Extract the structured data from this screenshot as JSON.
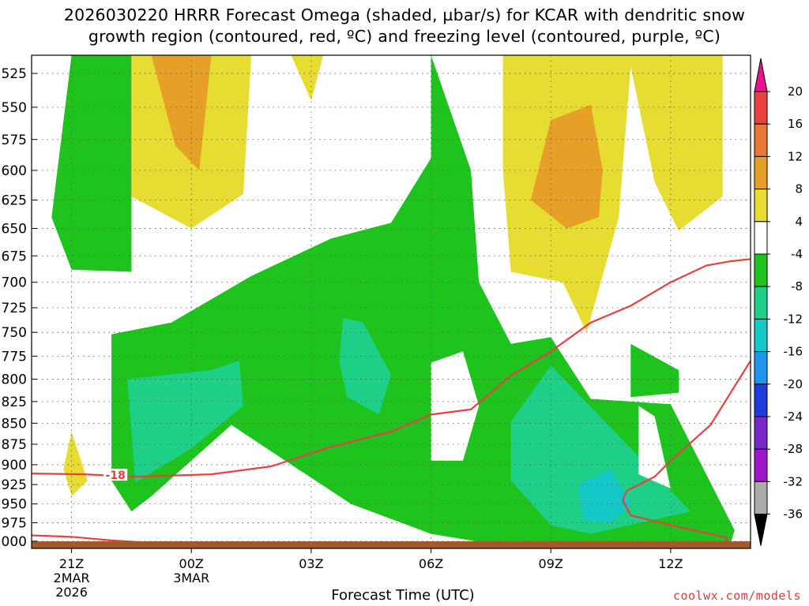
{
  "title_line1": "2026030220 HRRR Forecast Omega (shaded, µbar/s) for KCAR with dendritic snow",
  "title_line2": "growth region (contoured, red, ºC) and freezing level (contoured, purple, ºC)",
  "x_axis_title": "Forecast Time (UTC)",
  "credit": "coolwx.com/models",
  "contour_label": "-18",
  "colors": {
    "green": "#1ec31e",
    "teal": "#1ecf88",
    "cyan": "#14c8c8",
    "yellow": "#e6dc32",
    "orange": "#e6a028",
    "red_contour": "#e84040",
    "ground": "#a05a2c"
  },
  "chart_data": {
    "type": "heatmap",
    "title": "2026030220 HRRR Forecast Omega (shaded, µbar/s) for KCAR with dendritic snow growth region (contoured, red, ºC) and freezing level (contoured, purple, ºC)",
    "xlabel": "Forecast Time (UTC)",
    "ylabel": "",
    "x_ticks": [
      {
        "label": "21Z",
        "sub": [
          "2MAR",
          "2026"
        ],
        "hour": 1
      },
      {
        "label": "00Z",
        "sub": [
          "3MAR"
        ],
        "hour": 4
      },
      {
        "label": "03Z",
        "sub": [],
        "hour": 7
      },
      {
        "label": "06Z",
        "sub": [],
        "hour": 10
      },
      {
        "label": "09Z",
        "sub": [],
        "hour": 13
      },
      {
        "label": "12Z",
        "sub": [],
        "hour": 16
      }
    ],
    "xlim_hours": [
      0,
      18
    ],
    "y_ticks": [
      525,
      550,
      575,
      600,
      625,
      650,
      675,
      700,
      725,
      750,
      775,
      800,
      825,
      850,
      875,
      900,
      925,
      950,
      975,
      1000
    ],
    "ylim_mb": [
      1010,
      512
    ],
    "y_scale": "log-pressure",
    "colorbar": {
      "labels": [
        "20",
        "16",
        "12",
        "8",
        "4",
        "-4",
        "-8",
        "-12",
        "-16",
        "-20",
        "-24",
        "-28",
        "-32",
        "-36"
      ],
      "bins": [
        {
          "from": 16,
          "to": 20,
          "color": "#e84040"
        },
        {
          "from": 12,
          "to": 16,
          "color": "#e87830"
        },
        {
          "from": 8,
          "to": 12,
          "color": "#e6a028"
        },
        {
          "from": 4,
          "to": 8,
          "color": "#e6dc32"
        },
        {
          "from": -4,
          "to": 4,
          "color": "#ffffff"
        },
        {
          "from": -8,
          "to": -4,
          "color": "#1ec31e"
        },
        {
          "from": -12,
          "to": -8,
          "color": "#1ecf88"
        },
        {
          "from": -16,
          "to": -12,
          "color": "#14c8c8"
        },
        {
          "from": -20,
          "to": -16,
          "color": "#1e96f0"
        },
        {
          "from": -24,
          "to": -20,
          "color": "#1e3cdc"
        },
        {
          "from": -28,
          "to": -24,
          "color": "#7828c8"
        },
        {
          "from": -32,
          "to": -28,
          "color": "#a014c8"
        },
        {
          "from": -36,
          "to": -32,
          "color": "#aaaaaa"
        }
      ],
      "over_color": "#e6148c",
      "under_color": "#000000"
    },
    "shaded_regions": [
      {
        "name": "green-west",
        "color": "green",
        "points": [
          [
            1,
            512
          ],
          [
            2.5,
            512
          ],
          [
            2.5,
            690
          ],
          [
            1.0,
            688
          ],
          [
            0.5,
            640
          ]
        ]
      },
      {
        "name": "green-main",
        "color": "green",
        "points": [
          [
            2.0,
            752
          ],
          [
            3.5,
            740
          ],
          [
            5.5,
            694
          ],
          [
            7.5,
            659
          ],
          [
            9.0,
            645
          ],
          [
            10.0,
            590
          ],
          [
            10.0,
            512
          ],
          [
            11.0,
            600
          ],
          [
            11.2,
            700
          ],
          [
            12.0,
            762
          ],
          [
            13.0,
            755
          ],
          [
            14.0,
            822
          ],
          [
            16.0,
            828
          ],
          [
            17.6,
            985
          ],
          [
            17.5,
            1003
          ],
          [
            15.0,
            1005
          ],
          [
            12.0,
            1008
          ],
          [
            10.0,
            990
          ],
          [
            8.0,
            950
          ],
          [
            6.5,
            900
          ],
          [
            5.0,
            852
          ],
          [
            3.0,
            940
          ],
          [
            2.5,
            960
          ],
          [
            2.0,
            920
          ]
        ]
      },
      {
        "name": "green-east",
        "color": "green",
        "points": [
          [
            15.0,
            762
          ],
          [
            16.2,
            790
          ],
          [
            16.2,
            815
          ],
          [
            15.0,
            820
          ]
        ]
      },
      {
        "name": "teal-west",
        "color": "teal",
        "points": [
          [
            2.4,
            800
          ],
          [
            4.5,
            790
          ],
          [
            5.2,
            780
          ],
          [
            5.3,
            830
          ],
          [
            4.0,
            880
          ],
          [
            2.6,
            922
          ],
          [
            2.5,
            860
          ]
        ]
      },
      {
        "name": "teal-mid",
        "color": "teal",
        "points": [
          [
            7.8,
            735
          ],
          [
            8.3,
            740
          ],
          [
            9.0,
            795
          ],
          [
            8.7,
            840
          ],
          [
            7.9,
            820
          ],
          [
            7.7,
            780
          ]
        ]
      },
      {
        "name": "teal-east",
        "color": "teal",
        "points": [
          [
            12.0,
            848
          ],
          [
            13.0,
            785
          ],
          [
            15.0,
            880
          ],
          [
            16.5,
            960
          ],
          [
            14.0,
            990
          ],
          [
            13.0,
            978
          ],
          [
            12.0,
            920
          ]
        ]
      },
      {
        "name": "cyan-east",
        "color": "cyan",
        "points": [
          [
            13.7,
            925
          ],
          [
            14.5,
            905
          ],
          [
            15.0,
            950
          ],
          [
            14.5,
            975
          ],
          [
            13.8,
            970
          ]
        ]
      },
      {
        "name": "yellow-north",
        "color": "yellow",
        "points": [
          [
            2.5,
            512
          ],
          [
            5.5,
            512
          ],
          [
            5.3,
            620
          ],
          [
            4.0,
            650
          ],
          [
            2.5,
            622
          ]
        ]
      },
      {
        "name": "orange-north",
        "color": "orange",
        "points": [
          [
            3.0,
            512
          ],
          [
            4.5,
            512
          ],
          [
            4.2,
            600
          ],
          [
            3.6,
            580
          ]
        ]
      },
      {
        "name": "yellow-east",
        "color": "yellow",
        "points": [
          [
            11.8,
            512
          ],
          [
            17.3,
            512
          ],
          [
            17.3,
            622
          ],
          [
            16.2,
            652
          ],
          [
            15.6,
            610
          ],
          [
            15.0,
            520
          ],
          [
            14.7,
            640
          ],
          [
            13.9,
            750
          ],
          [
            13.3,
            700
          ],
          [
            12.0,
            690
          ],
          [
            11.8,
            600
          ]
        ]
      },
      {
        "name": "orange-east",
        "color": "orange",
        "points": [
          [
            12.5,
            625
          ],
          [
            13.0,
            560
          ],
          [
            14.0,
            548
          ],
          [
            14.3,
            600
          ],
          [
            14.2,
            640
          ],
          [
            13.4,
            650
          ]
        ]
      },
      {
        "name": "yellow-small",
        "color": "yellow",
        "points": [
          [
            0.8,
            905
          ],
          [
            1.0,
            860
          ],
          [
            1.4,
            920
          ],
          [
            1.0,
            940
          ]
        ]
      },
      {
        "name": "yellow-top-mid",
        "color": "yellow",
        "points": [
          [
            6.5,
            512
          ],
          [
            7.3,
            512
          ],
          [
            7.0,
            545
          ]
        ]
      }
    ],
    "white_holes": [
      {
        "name": "hole-0545",
        "points": [
          [
            10.0,
            782
          ],
          [
            10.8,
            770
          ],
          [
            11.2,
            830
          ],
          [
            10.8,
            895
          ],
          [
            10.0,
            895
          ]
        ]
      },
      {
        "name": "hole-12z",
        "points": [
          [
            15.2,
            830
          ],
          [
            15.6,
            842
          ],
          [
            16.0,
            930
          ],
          [
            15.2,
            912
          ]
        ]
      }
    ],
    "series": [
      {
        "name": "-18",
        "type": "contour",
        "color": "red_contour",
        "points": [
          [
            0,
            911
          ],
          [
            1.3,
            912
          ],
          [
            2.6,
            915
          ],
          [
            4.5,
            912
          ],
          [
            6.0,
            902
          ],
          [
            7.5,
            878
          ],
          [
            9.0,
            860
          ],
          [
            10.0,
            840
          ],
          [
            11.0,
            834
          ],
          [
            12.0,
            796
          ],
          [
            13.0,
            770
          ],
          [
            14.0,
            740
          ],
          [
            15.0,
            723
          ],
          [
            16.0,
            700
          ],
          [
            16.9,
            684
          ],
          [
            17.5,
            680
          ],
          [
            18.0,
            678
          ]
        ]
      },
      {
        "name": "dendritic-lower",
        "type": "contour",
        "color": "red_contour",
        "points": [
          [
            14.9,
            933
          ],
          [
            15.6,
            915
          ],
          [
            16.0,
            895
          ],
          [
            17.0,
            852
          ],
          [
            18.0,
            780
          ]
        ]
      },
      {
        "name": "dendritic-lower-2",
        "type": "contour",
        "color": "red_contour",
        "points": [
          [
            14.9,
            933
          ],
          [
            14.8,
            945
          ],
          [
            15.0,
            965
          ],
          [
            16.0,
            978
          ],
          [
            17.0,
            990
          ],
          [
            17.4,
            995
          ],
          [
            17.4,
            1006
          ]
        ]
      },
      {
        "name": "surface-layer",
        "type": "contour",
        "color": "red_contour",
        "points": [
          [
            0,
            992
          ],
          [
            1.0,
            994
          ],
          [
            2.0,
            999
          ],
          [
            3.2,
            1003
          ],
          [
            2.8,
            1006
          ]
        ]
      }
    ]
  }
}
